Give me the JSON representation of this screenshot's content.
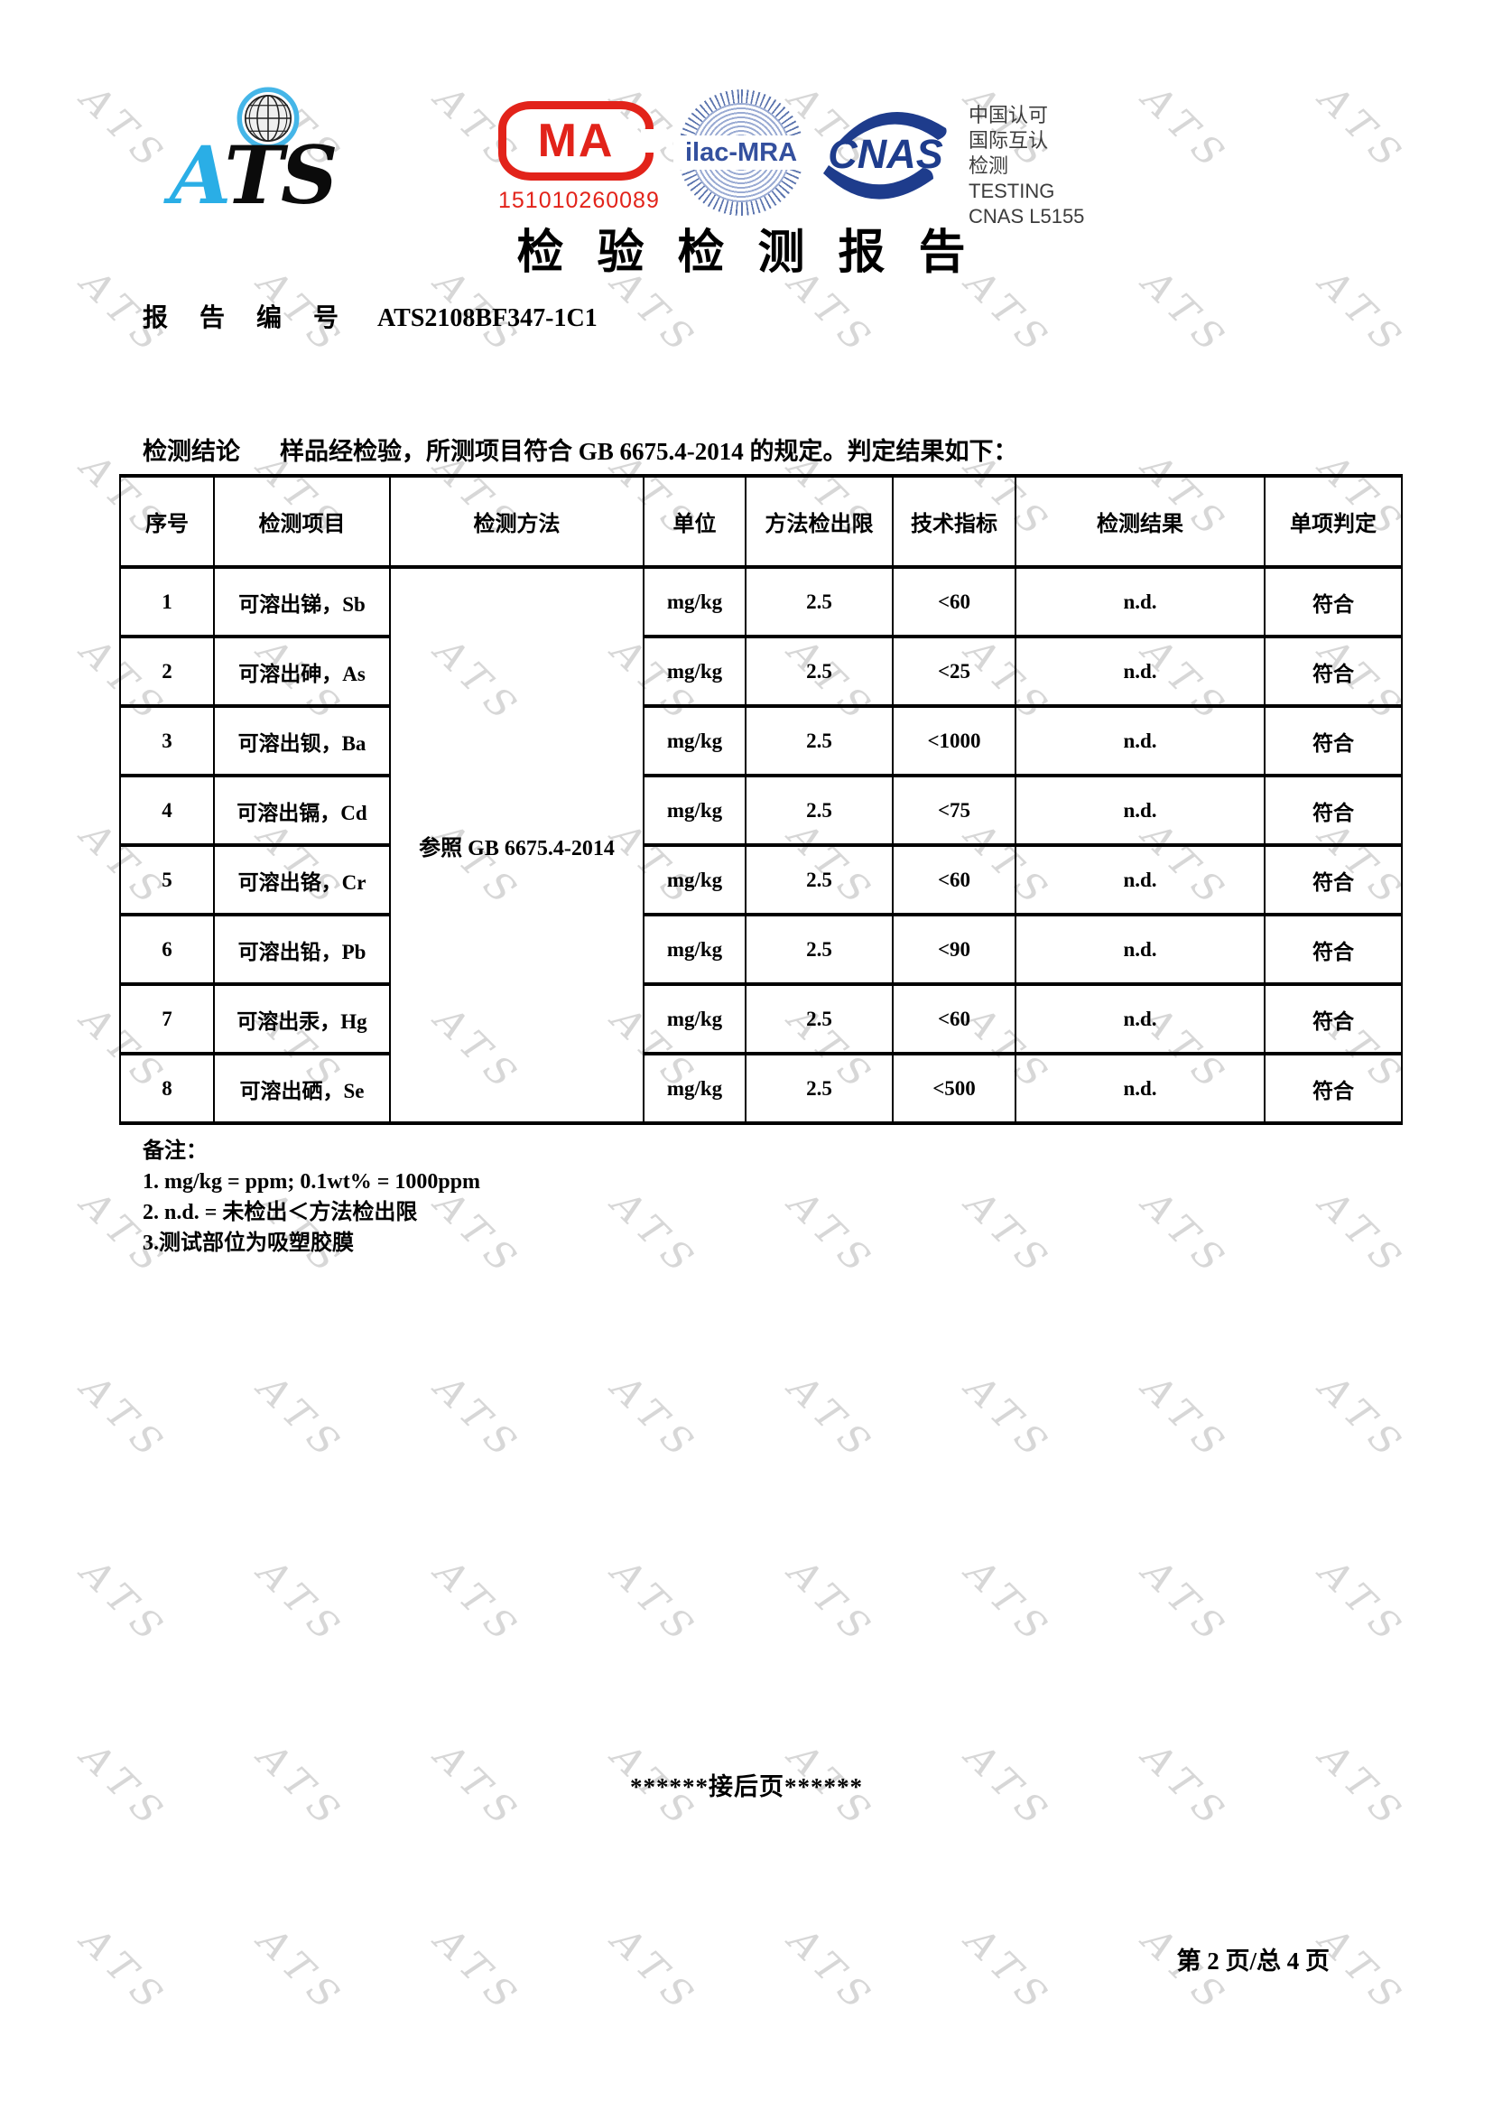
{
  "page": {
    "title": "检 验 检 测 报 告",
    "report_no_label": "报 告 编 号",
    "report_no": "ATS2108BF347-1C1"
  },
  "logos": {
    "ats_a": "A",
    "ats_ts": "TS",
    "cma_text": "MA",
    "cma_number": "151010260089",
    "ilac_text": "ilac-MRA",
    "cnas_text": "CNAS",
    "accreditation_lines": [
      "中国认可",
      "国际互认",
      "检测",
      "TESTING",
      "CNAS L5155"
    ]
  },
  "conclusion": {
    "label": "检测结论",
    "text": "样品经检验，所测项目符合 GB 6675.4-2014 的规定。判定结果如下："
  },
  "table": {
    "headers": [
      "序号",
      "检测项目",
      "检测方法",
      "单位",
      "方法检出限",
      "技术指标",
      "检测结果",
      "单项判定"
    ],
    "method": "参照 GB 6675.4-2014",
    "rows": [
      {
        "no": "1",
        "item": "可溶出锑，Sb",
        "unit": "mg/kg",
        "limit": "2.5",
        "spec": "<60",
        "result": "n.d.",
        "verdict": "符合"
      },
      {
        "no": "2",
        "item": "可溶出砷，As",
        "unit": "mg/kg",
        "limit": "2.5",
        "spec": "<25",
        "result": "n.d.",
        "verdict": "符合"
      },
      {
        "no": "3",
        "item": "可溶出钡，Ba",
        "unit": "mg/kg",
        "limit": "2.5",
        "spec": "<1000",
        "result": "n.d.",
        "verdict": "符合"
      },
      {
        "no": "4",
        "item": "可溶出镉，Cd",
        "unit": "mg/kg",
        "limit": "2.5",
        "spec": "<75",
        "result": "n.d.",
        "verdict": "符合"
      },
      {
        "no": "5",
        "item": "可溶出铬，Cr",
        "unit": "mg/kg",
        "limit": "2.5",
        "spec": "<60",
        "result": "n.d.",
        "verdict": "符合"
      },
      {
        "no": "6",
        "item": "可溶出铅，Pb",
        "unit": "mg/kg",
        "limit": "2.5",
        "spec": "<90",
        "result": "n.d.",
        "verdict": "符合"
      },
      {
        "no": "7",
        "item": "可溶出汞，Hg",
        "unit": "mg/kg",
        "limit": "2.5",
        "spec": "<60",
        "result": "n.d.",
        "verdict": "符合"
      },
      {
        "no": "8",
        "item": "可溶出硒，Se",
        "unit": "mg/kg",
        "limit": "2.5",
        "spec": "<500",
        "result": "n.d.",
        "verdict": "符合"
      }
    ]
  },
  "remarks": {
    "label": "备注：",
    "lines": [
      "1. mg/kg = ppm; 0.1wt% = 1000ppm",
      "2. n.d. =  未检出＜方法检出限",
      "3.测试部位为吸塑胶膜"
    ]
  },
  "footer": {
    "continue_text": "******接后页******",
    "page_text": "第 2 页/总 4 页"
  },
  "watermark": {
    "text": "ATS"
  },
  "colors": {
    "cma_red": "#e2231a",
    "ats_blue": "#2aaee6",
    "ilac_blue": "#34509e",
    "cnas_navy": "#1e3c8c",
    "watermark_gray": "#d7d7d7"
  }
}
